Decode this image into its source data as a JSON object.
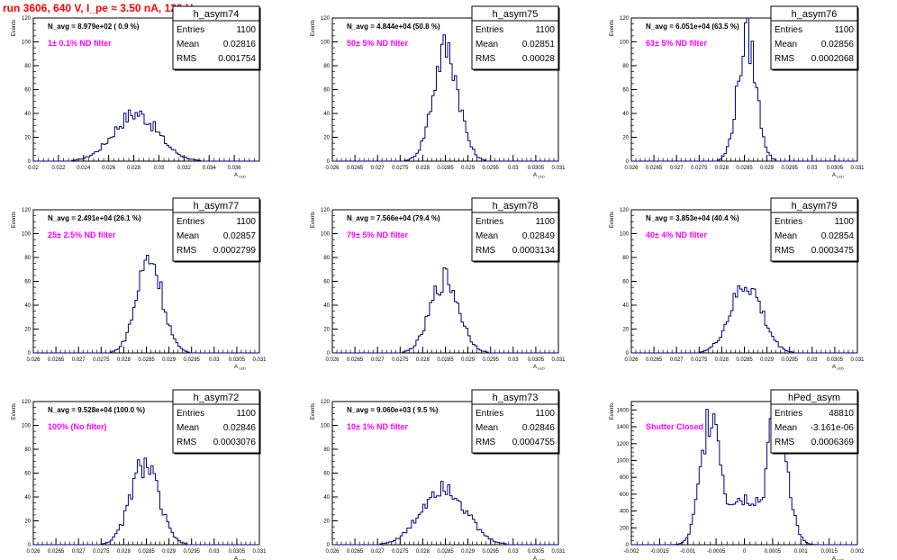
{
  "page_title": "run 3606,   640 V, I_pe ≈ 3.50 nA, 120 Hz",
  "colors": {
    "title": "#ff0000",
    "filter_label": "#ff00ff",
    "hist": "#000080",
    "axis": "#000000"
  },
  "stat_keys": {
    "entries": "Entries",
    "mean": "Mean",
    "rms": "RMS"
  },
  "chart_data": [
    {
      "type": "bar",
      "name": "h_asym74",
      "navg": "N_avg = 8.979e+02 ( 0.9 %)",
      "filter": "1± 0.1% ND filter",
      "stats": {
        "entries": "1100",
        "mean": "0.02816",
        "rms": "0.001754"
      },
      "xlabel": "A_LED",
      "ylabel": "Events",
      "xlim": [
        0.02,
        0.038
      ],
      "ylim": [
        0,
        120
      ],
      "x_ticks": [
        "0.02",
        "0.022",
        "0.024",
        "0.026",
        "0.028",
        "0.03",
        "0.032",
        "0.034",
        "0.036"
      ],
      "y_ticks": [
        "0",
        "20",
        "40",
        "60",
        "80",
        "100",
        "120"
      ],
      "mean": 0.02816,
      "rms": 0.001754,
      "peak": 40,
      "shape": "gauss"
    },
    {
      "type": "bar",
      "name": "h_asym75",
      "navg": "N_avg = 4.844e+04 (50.8 %)",
      "filter": "50± 5% ND filter",
      "stats": {
        "entries": "1100",
        "mean": "0.02851",
        "rms": "0.00028"
      },
      "xlabel": "A_LED",
      "ylabel": "Events",
      "xlim": [
        0.026,
        0.031
      ],
      "ylim": [
        0,
        120
      ],
      "x_ticks": [
        "0.026",
        "0.0265",
        "0.027",
        "0.0275",
        "0.028",
        "0.0285",
        "0.029",
        "0.0295",
        "0.03",
        "0.0305",
        "0.031"
      ],
      "y_ticks": [
        "0",
        "20",
        "40",
        "60",
        "80",
        "100",
        "120"
      ],
      "mean": 0.02851,
      "rms": 0.00028,
      "peak": 95,
      "shape": "gauss"
    },
    {
      "type": "bar",
      "name": "h_asym76",
      "navg": "N_avg = 6.051e+04 (63.5 %)",
      "filter": "63± 5% ND filter",
      "stats": {
        "entries": "1100",
        "mean": "0.02856",
        "rms": "0.0002068"
      },
      "xlabel": "A_LED",
      "ylabel": "Events",
      "xlim": [
        0.026,
        0.031
      ],
      "ylim": [
        0,
        120
      ],
      "x_ticks": [
        "0.026",
        "0.0265",
        "0.027",
        "0.0275",
        "0.028",
        "0.0285",
        "0.029",
        "0.0295",
        "0.03",
        "0.0305",
        "0.031"
      ],
      "y_ticks": [
        "0",
        "20",
        "40",
        "60",
        "80",
        "100",
        "120"
      ],
      "mean": 0.02856,
      "rms": 0.0002068,
      "peak": 103,
      "shape": "gauss"
    },
    {
      "type": "bar",
      "name": "h_asym77",
      "navg": "N_avg = 2.491e+04 (26.1 %)",
      "filter": "25± 2.5% ND filter",
      "stats": {
        "entries": "1100",
        "mean": "0.02857",
        "rms": "0.0002799"
      },
      "xlabel": "A_LED",
      "ylabel": "Events",
      "xlim": [
        0.026,
        0.031
      ],
      "ylim": [
        0,
        120
      ],
      "x_ticks": [
        "0.026",
        "0.0265",
        "0.027",
        "0.0275",
        "0.028",
        "0.0285",
        "0.029",
        "0.0295",
        "0.03",
        "0.0305",
        "0.031"
      ],
      "y_ticks": [
        "0",
        "20",
        "40",
        "60",
        "80",
        "100",
        "120"
      ],
      "mean": 0.02857,
      "rms": 0.0002799,
      "peak": 80,
      "shape": "gauss"
    },
    {
      "type": "bar",
      "name": "h_asym78",
      "navg": "N_avg = 7.566e+04 (79.4 %)",
      "filter": "79± 5% ND filter",
      "stats": {
        "entries": "1100",
        "mean": "0.02849",
        "rms": "0.0003134"
      },
      "xlabel": "A_LED",
      "ylabel": "Events",
      "xlim": [
        0.026,
        0.031
      ],
      "ylim": [
        0,
        120
      ],
      "x_ticks": [
        "0.026",
        "0.0265",
        "0.027",
        "0.0275",
        "0.028",
        "0.0285",
        "0.029",
        "0.0295",
        "0.03",
        "0.0305",
        "0.031"
      ],
      "y_ticks": [
        "0",
        "20",
        "40",
        "60",
        "80",
        "100",
        "120"
      ],
      "mean": 0.02849,
      "rms": 0.0003134,
      "peak": 62,
      "shape": "gauss"
    },
    {
      "type": "bar",
      "name": "h_asym79",
      "navg": "N_avg = 3.853e+04 (40.4 %)",
      "filter": "40± 4% ND filter",
      "stats": {
        "entries": "1100",
        "mean": "0.02854",
        "rms": "0.0003475"
      },
      "xlabel": "A_LED",
      "ylabel": "Events",
      "xlim": [
        0.026,
        0.031
      ],
      "ylim": [
        0,
        120
      ],
      "x_ticks": [
        "0.026",
        "0.0265",
        "0.027",
        "0.0275",
        "0.028",
        "0.0285",
        "0.029",
        "0.0295",
        "0.03",
        "0.0305",
        "0.031"
      ],
      "y_ticks": [
        "0",
        "20",
        "40",
        "60",
        "80",
        "100",
        "120"
      ],
      "mean": 0.02854,
      "rms": 0.0003475,
      "peak": 57,
      "shape": "gauss"
    },
    {
      "type": "bar",
      "name": "h_asym72",
      "navg": "N_avg = 9.528e+04 (100.0 %)",
      "filter": "100% (No filter)",
      "stats": {
        "entries": "1100",
        "mean": "0.02846",
        "rms": "0.0003076"
      },
      "xlabel": "A_LED",
      "ylabel": "Events",
      "xlim": [
        0.026,
        0.031
      ],
      "ylim": [
        0,
        120
      ],
      "x_ticks": [
        "0.026",
        "0.0265",
        "0.027",
        "0.0275",
        "0.028",
        "0.0285",
        "0.029",
        "0.0295",
        "0.03",
        "0.0305",
        "0.031"
      ],
      "y_ticks": [
        "0",
        "20",
        "40",
        "60",
        "80",
        "100",
        "120"
      ],
      "mean": 0.02846,
      "rms": 0.0003076,
      "peak": 68,
      "shape": "gauss"
    },
    {
      "type": "bar",
      "name": "h_asym73",
      "navg": "N_avg = 9.060e+03 ( 9.5 %)",
      "filter": "10± 1% ND filter",
      "stats": {
        "entries": "1100",
        "mean": "0.02846",
        "rms": "0.0004755"
      },
      "xlabel": "A_LED",
      "ylabel": "Events",
      "xlim": [
        0.026,
        0.031
      ],
      "ylim": [
        0,
        120
      ],
      "x_ticks": [
        "0.026",
        "0.0265",
        "0.027",
        "0.0275",
        "0.028",
        "0.0285",
        "0.029",
        "0.0295",
        "0.03",
        "0.0305",
        "0.031"
      ],
      "y_ticks": [
        "0",
        "20",
        "40",
        "60",
        "80",
        "100",
        "120"
      ],
      "mean": 0.02846,
      "rms": 0.0004755,
      "peak": 50,
      "shape": "gauss"
    },
    {
      "type": "bar",
      "name": "hPed_asym",
      "navg": "",
      "filter": "Shutter Closed",
      "stats": {
        "entries": "48810",
        "mean": "-3.161e-06",
        "rms": "0.0006369"
      },
      "xlabel": "A_LED",
      "ylabel": "Events",
      "xlim": [
        -0.002,
        0.002
      ],
      "ylim": [
        0,
        1700
      ],
      "x_ticks": [
        "-0.002",
        "-0.0015",
        "-0.001",
        "-0.0005",
        "0",
        "0.0005",
        "0.001",
        "0.0015",
        "0.002"
      ],
      "y_ticks": [
        "0",
        "200",
        "400",
        "600",
        "800",
        "1000",
        "1200",
        "1400",
        "1600"
      ],
      "mean": 0.0,
      "rms": 0.0006369,
      "peak": 1600,
      "shape": "bimodal",
      "modes": [
        -0.00058,
        0.00058
      ],
      "mode_sigma": 0.00018,
      "valley": 550
    }
  ]
}
